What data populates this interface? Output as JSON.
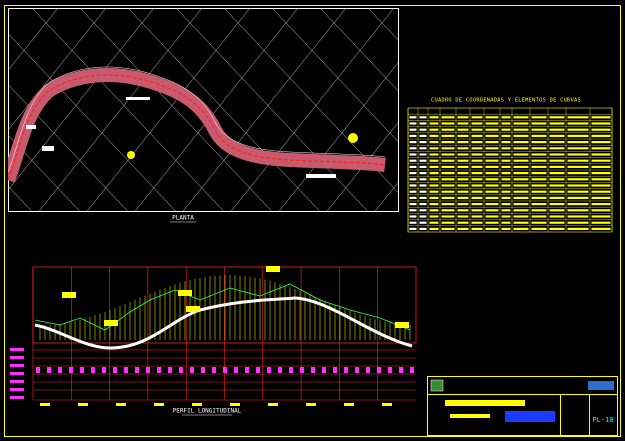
{
  "plan": {
    "title": "PLANTA"
  },
  "table": {
    "title": "CUADRO DE COORDENADAS Y ELEMENTOS DE CURVAS"
  },
  "profile": {
    "title": "PERFIL LONGITUDINAL"
  },
  "title_block": {
    "sheet": "PL-10"
  }
}
